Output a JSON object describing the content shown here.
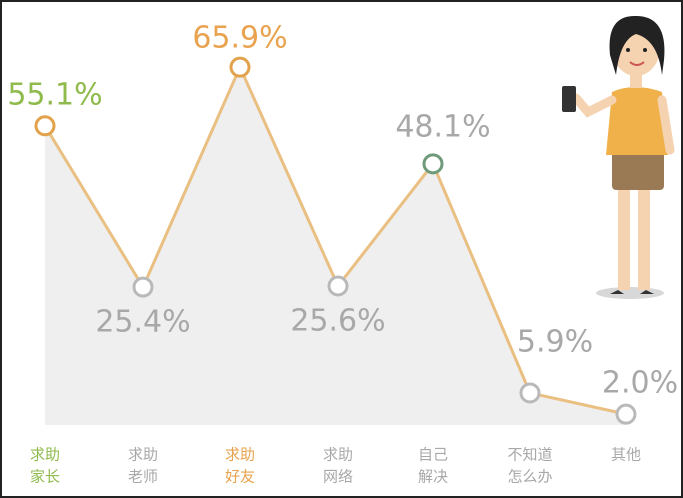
{
  "chart_data": {
    "type": "area-line",
    "categories": [
      [
        "求助",
        "家长"
      ],
      [
        "求助",
        "老师"
      ],
      [
        "求助",
        "好友"
      ],
      [
        "求助",
        "网络"
      ],
      [
        "自己",
        "解决"
      ],
      [
        "不知道",
        "怎么办"
      ],
      [
        "其他"
      ]
    ],
    "values": [
      55.1,
      25.4,
      65.9,
      25.6,
      48.1,
      5.9,
      2.0
    ],
    "value_labels": [
      "55.1%",
      "25.4%",
      "65.9%",
      "25.6%",
      "48.1%",
      "5.9%",
      "2.0%"
    ],
    "color": "#e9bf82",
    "area_color": "#efefef",
    "marker_colors": [
      "#e2a24c",
      "#b9b9b9",
      "#e2a24c",
      "#b9b9b9",
      "#6f9a7a",
      "#b9b9b9",
      "#b9b9b9"
    ],
    "label_colors": [
      "#8fba4c",
      "#a8a8a8",
      "#e9a24e",
      "#a8a8a8",
      "#a8a8a8",
      "#a8a8a8",
      "#a8a8a8"
    ]
  }
}
